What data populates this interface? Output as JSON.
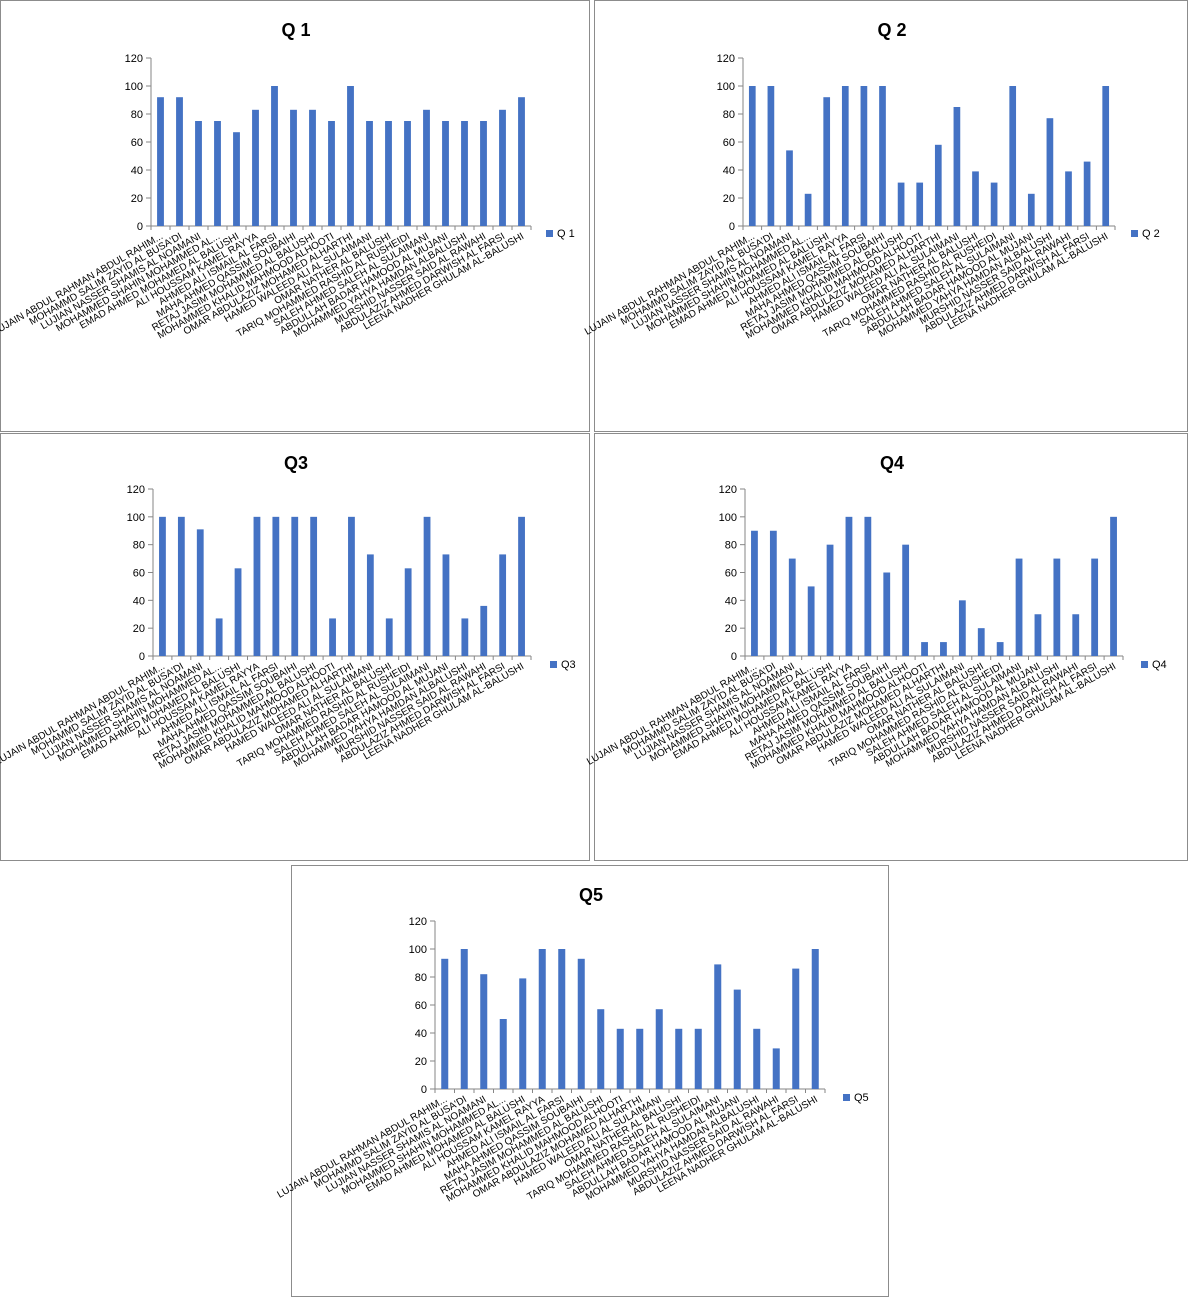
{
  "colors": {
    "bar": "#4472C4",
    "axis": "#868686",
    "grid": "#868686",
    "border": "#8c8c8c"
  },
  "chart_data": [
    {
      "type": "bar",
      "title": "Q 1",
      "series": [
        {
          "name": "Q 1",
          "values": [
            92,
            92,
            75,
            75,
            67,
            83,
            100,
            83,
            83,
            75,
            100,
            75,
            75,
            75,
            83,
            75,
            75,
            75,
            83,
            92
          ]
        }
      ],
      "ylim": [
        0,
        120
      ],
      "yticks": [
        0,
        20,
        40,
        60,
        80,
        100,
        120
      ],
      "grid": false,
      "legend": "right",
      "categories": [
        "LUJAIN ABDUL RAHMAN ABDUL RAHIM...",
        "MOHAMMD SALIM ZAYID AL BUSA'DI",
        "LUJIAN NASSER SHAMIS AL NOAMANI",
        "MOHAMMED SHAHIN MOHAMMED AL...",
        "EMAD AHMED MOHAMED AL BALUSHI",
        "ALI HOUSSAM KAMEL RAYYA",
        "AHMED ALI ISMAIL AL FARSI",
        "MAHA AHMED QASSIM SOUBAIHI",
        "RETAJ JASIM MOHAMMED AL BALUSHI",
        "MOHAMMED KHALID MAHMOOD ALHOOTI",
        "OMAR ABDULAZIZ MOHAMED ALHARTHI",
        "HAMED WALEED ALI AL SULAIMANI",
        "OMAR NATHER AL BALUSHI",
        "TARIQ MOHAMMED RASHID AL RUSHEIDI",
        "SALEH AHMED SALEH AL SULAIMANI",
        "ABDULLAH BADAR HAMOOD AL MUJANI",
        "MOHAMMED YAHYA HAMDAN ALBALUSHI",
        "MURSHID NASSER SAID AL RAWAHI",
        "ABDULAZIZ AHMED DARWISH AL FARSI",
        "LEENA NADHER GHULAM AL-BALUSHI"
      ]
    },
    {
      "type": "bar",
      "title": "Q 2",
      "series": [
        {
          "name": "Q 2",
          "values": [
            100,
            100,
            54,
            23,
            92,
            100,
            100,
            100,
            31,
            31,
            58,
            85,
            39,
            31,
            100,
            23,
            77,
            39,
            46,
            100
          ]
        }
      ],
      "ylim": [
        0,
        120
      ],
      "yticks": [
        0,
        20,
        40,
        60,
        80,
        100,
        120
      ],
      "grid": false,
      "legend": "right",
      "categories": [
        "LUJAIN ABDUL RAHMAN ABDUL RAHIM...",
        "MOHAMMD SALIM ZAYID AL BUSA'DI",
        "LUJIAN NASSER SHAMIS AL NOAMANI",
        "MOHAMMED SHAHIN MOHAMMED AL...",
        "EMAD AHMED MOHAMED AL BALUSHI",
        "ALI HOUSSAM KAMEL RAYYA",
        "AHMED ALI ISMAIL AL FARSI",
        "MAHA AHMED QASSIM SOUBAIHI",
        "RETAJ JASIM MOHAMMED AL BALUSHI",
        "MOHAMMED KHALID MAHMOOD ALHOOTI",
        "OMAR ABDULAZIZ MOHAMED ALHARTHI",
        "HAMED WALEED ALI AL SULAIMANI",
        "OMAR NATHER AL BALUSHI",
        "TARIQ MOHAMMED RASHID AL RUSHEIDI",
        "SALEH AHMED SALEH AL SULAIMANI",
        "ABDULLAH BADAR HAMOOD AL MUJANI",
        "MOHAMMED YAHYA HAMDAN ALBALUSHI",
        "MURSHID NASSER SAID AL RAWAHI",
        "ABDULAZIZ AHMED DARWISH AL FARSI",
        "LEENA NADHER GHULAM AL-BALUSHI"
      ]
    },
    {
      "type": "bar",
      "title": "Q3",
      "series": [
        {
          "name": "Q3",
          "values": [
            100,
            100,
            91,
            27,
            63,
            100,
            100,
            100,
            100,
            27,
            100,
            73,
            27,
            63,
            100,
            73,
            27,
            36,
            73,
            100
          ]
        }
      ],
      "ylim": [
        0,
        120
      ],
      "yticks": [
        0,
        20,
        40,
        60,
        80,
        100,
        120
      ],
      "grid": false,
      "legend": "right",
      "categories": [
        "LUJAIN ABDUL RAHMAN ABDUL RAHIM...",
        "MOHAMMD SALIM ZAYID AL BUSA'DI",
        "LUJIAN NASSER SHAMIS AL NOAMANI",
        "MOHAMMED SHAHIN MOHAMMED AL...",
        "EMAD AHMED MOHAMED AL BALUSHI",
        "ALI HOUSSAM KAMEL RAYYA",
        "AHMED ALI ISMAIL AL FARSI",
        "MAHA AHMED QASSIM SOUBAIHI",
        "RETAJ JASIM MOHAMMED AL BALUSHI",
        "MOHAMMED KHALID MAHMOOD ALHOOTI",
        "OMAR ABDULAZIZ MOHAMED ALHARTHI",
        "HAMED WALEED ALI AL SULAIMANI",
        "OMAR NATHER AL BALUSHI",
        "TARIQ MOHAMMED RASHID AL RUSHEIDI",
        "SALEH AHMED SALEH AL SULAIMANI",
        "ABDULLAH BADAR HAMOOD AL MUJANI",
        "MOHAMMED YAHYA HAMDAN ALBALUSHI",
        "MURSHID NASSER SAID AL RAWAHI",
        "ABDULAZIZ AHMED DARWISH AL FARSI",
        "LEENA NADHER GHULAM AL-BALUSHI"
      ]
    },
    {
      "type": "bar",
      "title": "Q4",
      "series": [
        {
          "name": "Q4",
          "values": [
            90,
            90,
            70,
            50,
            80,
            100,
            100,
            60,
            80,
            10,
            10,
            40,
            20,
            10,
            70,
            30,
            70,
            30,
            70,
            100
          ]
        }
      ],
      "ylim": [
        0,
        120
      ],
      "yticks": [
        0,
        20,
        40,
        60,
        80,
        100,
        120
      ],
      "grid": false,
      "legend": "right",
      "categories": [
        "LUJAIN ABDUL RAHMAN ABDUL RAHIM...",
        "MOHAMMD SALIM ZAYID AL BUSA'DI",
        "LUJIAN NASSER SHAMIS AL NOAMANI",
        "MOHAMMED SHAHIN MOHAMMED AL...",
        "EMAD AHMED MOHAMED AL BALUSHI",
        "ALI HOUSSAM KAMEL RAYYA",
        "AHMED ALI ISMAIL AL FARSI",
        "MAHA AHMED QASSIM SOUBAIHI",
        "RETAJ JASIM MOHAMMED AL BALUSHI",
        "MOHAMMED KHALID MAHMOOD ALHOOTI",
        "OMAR ABDULAZIZ MOHAMED ALHARTHI",
        "HAMED WALEED ALI AL SULAIMANI",
        "OMAR NATHER AL BALUSHI",
        "TARIQ MOHAMMED RASHID AL RUSHEIDI",
        "SALEH AHMED SALEH AL SULAIMANI",
        "ABDULLAH BADAR HAMOOD AL MUJANI",
        "MOHAMMED YAHYA HAMDAN ALBALUSHI",
        "MURSHID NASSER SAID AL RAWAHI",
        "ABDULAZIZ AHMED DARWISH AL FARSI",
        "LEENA NADHER GHULAM AL-BALUSHI"
      ]
    },
    {
      "type": "bar",
      "title": "Q5",
      "series": [
        {
          "name": "Q5",
          "values": [
            93,
            100,
            82,
            50,
            79,
            100,
            100,
            93,
            57,
            43,
            43,
            57,
            43,
            43,
            89,
            71,
            43,
            29,
            86,
            100
          ]
        }
      ],
      "ylim": [
        0,
        120
      ],
      "yticks": [
        0,
        20,
        40,
        60,
        80,
        100,
        120
      ],
      "grid": false,
      "legend": "right",
      "categories": [
        "LUJAIN ABDUL RAHMAN ABDUL RAHIM...",
        "MOHAMMD SALIM ZAYID AL BUSA'DI",
        "LUJIAN NASSER SHAMIS AL NOAMANI",
        "MOHAMMED SHAHIN MOHAMMED AL...",
        "EMAD AHMED MOHAMED AL BALUSHI",
        "ALI HOUSSAM KAMEL RAYYA",
        "AHMED ALI ISMAIL AL FARSI",
        "MAHA AHMED QASSIM SOUBAIHI",
        "RETAJ JASIM MOHAMMED AL BALUSHI",
        "MOHAMMED KHALID MAHMOOD ALHOOTI",
        "OMAR ABDULAZIZ MOHAMED ALHARTHI",
        "HAMED WALEED ALI AL SULAIMANI",
        "OMAR NATHER AL BALUSHI",
        "TARIQ MOHAMMED RASHID AL RUSHEIDI",
        "SALEH AHMED SALEH AL SULAIMANI",
        "ABDULLAH BADAR HAMOOD AL MUJANI",
        "MOHAMMED YAHYA HAMDAN ALBALUSHI",
        "MURSHID NASSER SAID AL RAWAHI",
        "ABDULAZIZ AHMED DARWISH AL FARSI",
        "LEENA NADHER GHULAM AL-BALUSHI"
      ]
    }
  ]
}
